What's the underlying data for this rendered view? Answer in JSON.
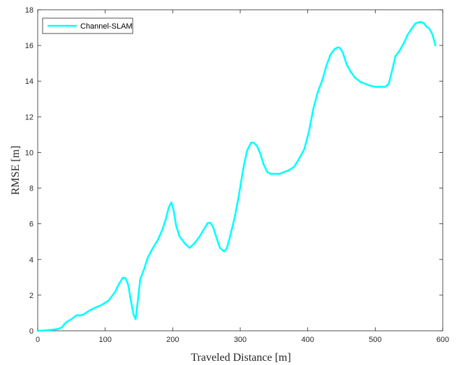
{
  "chart_data": {
    "type": "line",
    "xlabel": "Traveled Distance [m]",
    "ylabel": "RMSE [m]",
    "xlim": [
      0,
      600
    ],
    "ylim": [
      0,
      18
    ],
    "xticks": [
      0,
      100,
      200,
      300,
      400,
      500,
      600
    ],
    "yticks": [
      0,
      2,
      4,
      6,
      8,
      10,
      12,
      14,
      16,
      18
    ],
    "grid": false,
    "legend_position": "top-left",
    "colors": {
      "axis": "#262626",
      "series": "#00ffff"
    },
    "series": [
      {
        "name": "Channel-SLAM",
        "x": [
          0,
          10,
          20,
          30,
          36,
          40,
          45,
          50,
          55,
          58,
          62,
          68,
          75,
          85,
          95,
          105,
          115,
          120,
          126,
          130,
          134,
          138,
          142,
          145,
          148,
          152,
          158,
          163,
          170,
          178,
          185,
          190,
          194,
          198,
          201,
          205,
          210,
          218,
          225,
          232,
          240,
          247,
          252,
          256,
          260,
          265,
          270,
          276,
          280,
          285,
          292,
          298,
          304,
          310,
          316,
          320,
          325,
          330,
          335,
          340,
          345,
          350,
          358,
          365,
          372,
          380,
          388,
          395,
          402,
          408,
          415,
          422,
          428,
          434,
          440,
          445,
          448,
          452,
          458,
          464,
          470,
          478,
          485,
          492,
          500,
          508,
          515,
          520,
          525,
          530,
          536,
          542,
          548,
          555,
          560,
          565,
          568,
          572,
          576,
          580,
          585,
          589
        ],
        "values": [
          0,
          0.02,
          0.05,
          0.1,
          0.2,
          0.4,
          0.55,
          0.65,
          0.8,
          0.88,
          0.85,
          0.92,
          1.1,
          1.3,
          1.45,
          1.7,
          2.2,
          2.6,
          2.97,
          2.95,
          2.6,
          1.7,
          0.9,
          0.65,
          1.6,
          2.9,
          3.5,
          4.1,
          4.6,
          5.1,
          5.7,
          6.3,
          6.9,
          7.2,
          6.8,
          5.9,
          5.3,
          4.9,
          4.65,
          4.9,
          5.3,
          5.75,
          6.05,
          6.05,
          5.8,
          5.2,
          4.65,
          4.45,
          4.6,
          5.3,
          6.4,
          7.6,
          9,
          10.1,
          10.55,
          10.55,
          10.35,
          9.9,
          9.3,
          8.9,
          8.8,
          8.8,
          8.8,
          8.9,
          9.0,
          9.2,
          9.7,
          10.2,
          11.2,
          12.4,
          13.4,
          14.1,
          14.9,
          15.5,
          15.8,
          15.9,
          15.85,
          15.6,
          14.9,
          14.5,
          14.2,
          13.95,
          13.85,
          13.75,
          13.68,
          13.68,
          13.68,
          13.85,
          14.6,
          15.4,
          15.7,
          16.1,
          16.6,
          17.0,
          17.25,
          17.3,
          17.32,
          17.25,
          17.05,
          16.95,
          16.6,
          16.0
        ]
      }
    ]
  }
}
